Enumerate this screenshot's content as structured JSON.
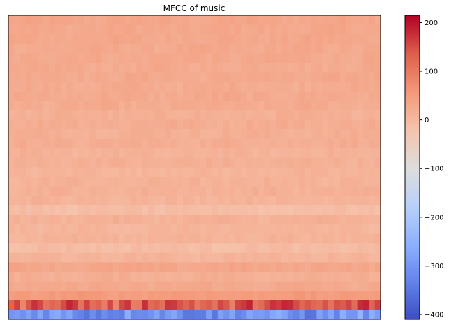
{
  "chart_data": {
    "type": "heatmap",
    "title": "MFCC of music",
    "xlabel": "",
    "ylabel": "",
    "colormap": "coolwarm",
    "colorbar": {
      "range": [
        -410,
        215
      ],
      "ticks": [
        200,
        100,
        0,
        -100,
        -200,
        -300,
        -400
      ],
      "tick_labels": [
        "200",
        "100",
        "0",
        "−100",
        "−200",
        "−300",
        "−400"
      ]
    },
    "n_coefficients": 32,
    "n_frames": 64,
    "row_profile_top_to_bottom": [
      35,
      32,
      33,
      30,
      31,
      28,
      30,
      27,
      29,
      26,
      18,
      24,
      20,
      22,
      12,
      18,
      10,
      14,
      16,
      12,
      -8,
      15,
      8,
      12,
      -5,
      10,
      35,
      20,
      30,
      55,
      140,
      -300
    ],
    "grid": false,
    "legend": "none"
  }
}
